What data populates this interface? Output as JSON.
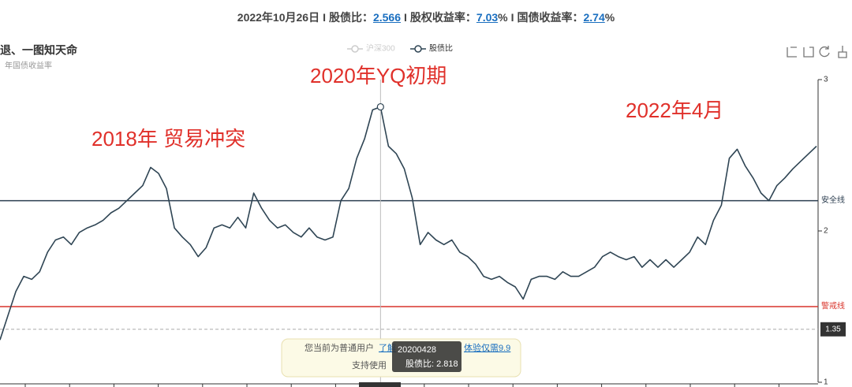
{
  "header": {
    "date": "2022年10月26日",
    "separator": "I",
    "items": [
      {
        "label": "股债比：",
        "value": "2.566",
        "suffix": ""
      },
      {
        "label": "股权收益率：",
        "value": "7.03",
        "suffix": "%"
      },
      {
        "label": "国债收益率：",
        "value": "2.74",
        "suffix": "%"
      }
    ]
  },
  "chart_data": {
    "type": "line",
    "title": "退、一图知天命",
    "subtitle": "年国债收益率",
    "legend": [
      {
        "name": "沪深300",
        "color": "#cccccc"
      },
      {
        "name": "股债比",
        "color": "#2f4554"
      }
    ],
    "series": [
      {
        "name": "股债比",
        "color": "#2f4554",
        "values": [
          1.28,
          1.44,
          1.6,
          1.7,
          1.68,
          1.73,
          1.86,
          1.94,
          1.96,
          1.91,
          1.99,
          2.02,
          2.04,
          2.07,
          2.12,
          2.15,
          2.2,
          2.25,
          2.3,
          2.42,
          2.38,
          2.28,
          2.02,
          1.96,
          1.91,
          1.83,
          1.89,
          2.02,
          2.04,
          2.02,
          2.09,
          2.02,
          2.25,
          2.15,
          2.07,
          2.02,
          2.04,
          1.99,
          1.96,
          2.02,
          1.96,
          1.94,
          1.96,
          2.2,
          2.28,
          2.48,
          2.61,
          2.8,
          2.82,
          2.56,
          2.51,
          2.41,
          2.22,
          1.91,
          1.99,
          1.94,
          1.91,
          1.94,
          1.86,
          1.83,
          1.78,
          1.7,
          1.68,
          1.7,
          1.66,
          1.63,
          1.55,
          1.68,
          1.7,
          1.7,
          1.68,
          1.73,
          1.7,
          1.7,
          1.73,
          1.76,
          1.83,
          1.86,
          1.83,
          1.81,
          1.83,
          1.76,
          1.81,
          1.76,
          1.81,
          1.76,
          1.81,
          1.86,
          1.96,
          1.91,
          2.07,
          2.17,
          2.48,
          2.54,
          2.43,
          2.35,
          2.25,
          2.2,
          2.3,
          2.35,
          2.41,
          2.46,
          2.51,
          2.56
        ]
      }
    ],
    "ylim": [
      1,
      3
    ],
    "yticks": [
      1,
      2,
      3
    ],
    "reference_lines": [
      {
        "name": "安全线",
        "value": 2.2,
        "color": "#2c3e50"
      },
      {
        "name": "警戒线",
        "value": 1.5,
        "color": "#d9342b"
      }
    ],
    "axis_pointer": {
      "value": 1.35
    },
    "annotations": [
      "2018年 贸易冲突",
      "2020年YQ初期",
      "2022年4月"
    ],
    "tooltip": {
      "index": 48,
      "title": "20200428",
      "text": "股债比: 2.818"
    },
    "notice": {
      "line1": "您当前为普通用户",
      "link1": "了解",
      "link2": "体验仅需9.9",
      "tail": ",",
      "line2": "支持使用"
    }
  }
}
